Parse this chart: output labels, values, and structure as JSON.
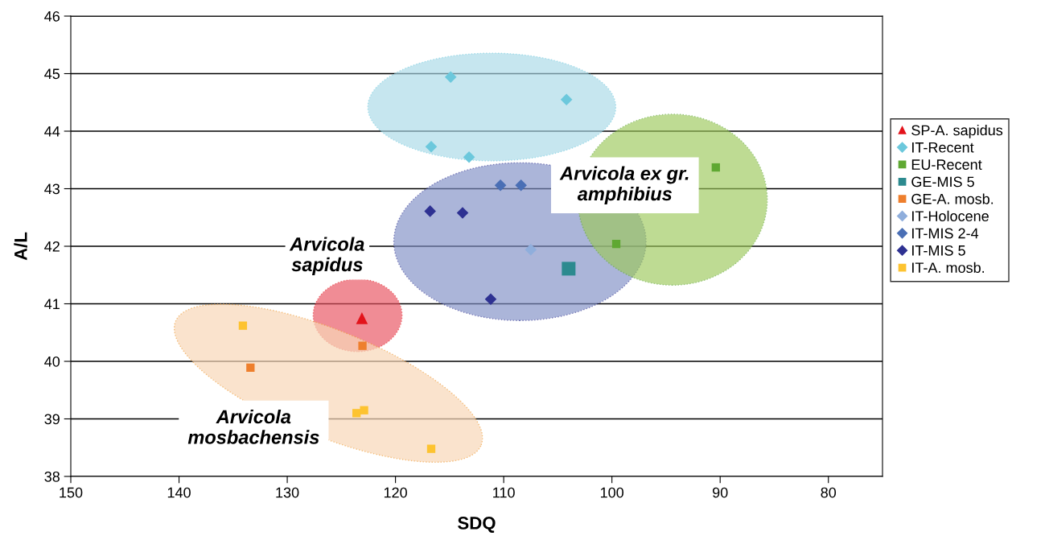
{
  "chart_data": {
    "type": "scatter",
    "xlabel": "SDQ",
    "ylabel": "A/L",
    "xlim": [
      150,
      75
    ],
    "xticks": [
      150,
      140,
      130,
      120,
      110,
      100,
      90,
      80
    ],
    "ylim": [
      38,
      46
    ],
    "yticks": [
      38,
      39,
      40,
      41,
      42,
      43,
      44,
      45,
      46
    ],
    "grid": "y",
    "legend": "right",
    "annotations": [
      "Arvicola\nsapidus",
      "Arvicola\nmosbachensis",
      "Arvicola ex gr.\namphibius"
    ],
    "series": [
      {
        "name": "SP-A. sapidus",
        "color": "#e3131b",
        "marker": "triangle",
        "x": [
          123.1
        ],
        "values": [
          40.75
        ]
      },
      {
        "name": "IT-Recent",
        "color": "#6cc8dc",
        "marker": "diamond",
        "x": [
          114.9,
          104.2,
          116.7,
          113.2
        ],
        "values": [
          44.94,
          44.55,
          43.73,
          43.55
        ]
      },
      {
        "name": "EU-Recent",
        "color": "#5fa832",
        "marker": "square",
        "x": [
          90.4,
          99.6
        ],
        "values": [
          43.37,
          42.04
        ]
      },
      {
        "name": "GE-MIS 5",
        "color": "#2c8a8f",
        "marker": "square",
        "x": [
          104.0
        ],
        "values": [
          41.61
        ]
      },
      {
        "name": "GE-A. mosb.",
        "color": "#ee7f2d",
        "marker": "square",
        "x": [
          123.05,
          133.4
        ],
        "values": [
          40.27,
          39.89
        ]
      },
      {
        "name": "IT-Holocene",
        "color": "#8faedc",
        "marker": "diamond",
        "x": [
          107.5
        ],
        "values": [
          41.94
        ]
      },
      {
        "name": "IT-MIS 2-4",
        "color": "#4a6fb5",
        "marker": "diamond",
        "x": [
          110.3,
          108.4
        ],
        "values": [
          43.06,
          43.06
        ]
      },
      {
        "name": "IT-MIS 5",
        "color": "#2e3192",
        "marker": "diamond",
        "x": [
          116.8,
          113.8,
          111.2
        ],
        "values": [
          42.61,
          42.58,
          41.08
        ]
      },
      {
        "name": "IT-A. mosb.",
        "color": "#fdc330",
        "marker": "square",
        "x": [
          134.1,
          123.6,
          122.9,
          116.7
        ],
        "values": [
          40.62,
          39.1,
          39.15,
          38.48
        ]
      }
    ]
  }
}
